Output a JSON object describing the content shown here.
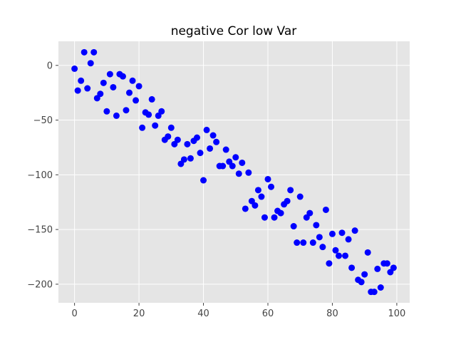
{
  "chart_data": {
    "type": "scatter",
    "title": "negative Cor low Var",
    "xlabel": "",
    "ylabel": "",
    "xlim": [
      -5,
      104
    ],
    "ylim": [
      -217,
      22
    ],
    "x_ticks": [
      0,
      20,
      40,
      60,
      80,
      100
    ],
    "y_ticks": [
      0,
      -50,
      -100,
      -150,
      -200
    ],
    "grid": true,
    "background": "#e5e5e5",
    "point_color": "#0000ff",
    "x": [
      0,
      1,
      2,
      3,
      4,
      5,
      6,
      7,
      8,
      9,
      10,
      11,
      12,
      13,
      14,
      15,
      16,
      17,
      18,
      19,
      20,
      21,
      22,
      23,
      24,
      25,
      26,
      27,
      28,
      29,
      30,
      31,
      32,
      33,
      34,
      35,
      36,
      37,
      38,
      39,
      40,
      41,
      42,
      43,
      44,
      45,
      46,
      47,
      48,
      49,
      50,
      51,
      52,
      53,
      54,
      55,
      56,
      57,
      58,
      59,
      60,
      61,
      62,
      63,
      64,
      65,
      66,
      67,
      68,
      69,
      70,
      71,
      72,
      73,
      74,
      75,
      76,
      77,
      78,
      79,
      80,
      81,
      82,
      83,
      84,
      85,
      86,
      87,
      88,
      89,
      90,
      91,
      92,
      93,
      94,
      95,
      96,
      97,
      98,
      99
    ],
    "y": [
      -3,
      -23,
      -14,
      12,
      -21,
      2,
      12,
      -30,
      -26,
      -16,
      -42,
      -8,
      -20,
      -46,
      -8,
      -10,
      -41,
      -25,
      -14,
      -32,
      -19,
      -57,
      -43,
      -45,
      -31,
      -55,
      -46,
      -42,
      -68,
      -65,
      -57,
      -72,
      -68,
      -90,
      -86,
      -72,
      -85,
      -69,
      -66,
      -80,
      -105,
      -59,
      -76,
      -64,
      -70,
      -92,
      -92,
      -77,
      -88,
      -92,
      -84,
      -99,
      -89,
      -131,
      -98,
      -124,
      -128,
      -114,
      -120,
      -139,
      -104,
      -111,
      -139,
      -133,
      -135,
      -127,
      -124,
      -114,
      -147,
      -162,
      -120,
      -162,
      -139,
      -135,
      -162,
      -146,
      -157,
      -166,
      -132,
      -181,
      -154,
      -169,
      -174,
      -153,
      -174,
      -159,
      -185,
      -151,
      -196,
      -198,
      -191,
      -171,
      -207,
      -207,
      -186,
      -203,
      -181,
      -181,
      -189,
      -185
    ]
  }
}
